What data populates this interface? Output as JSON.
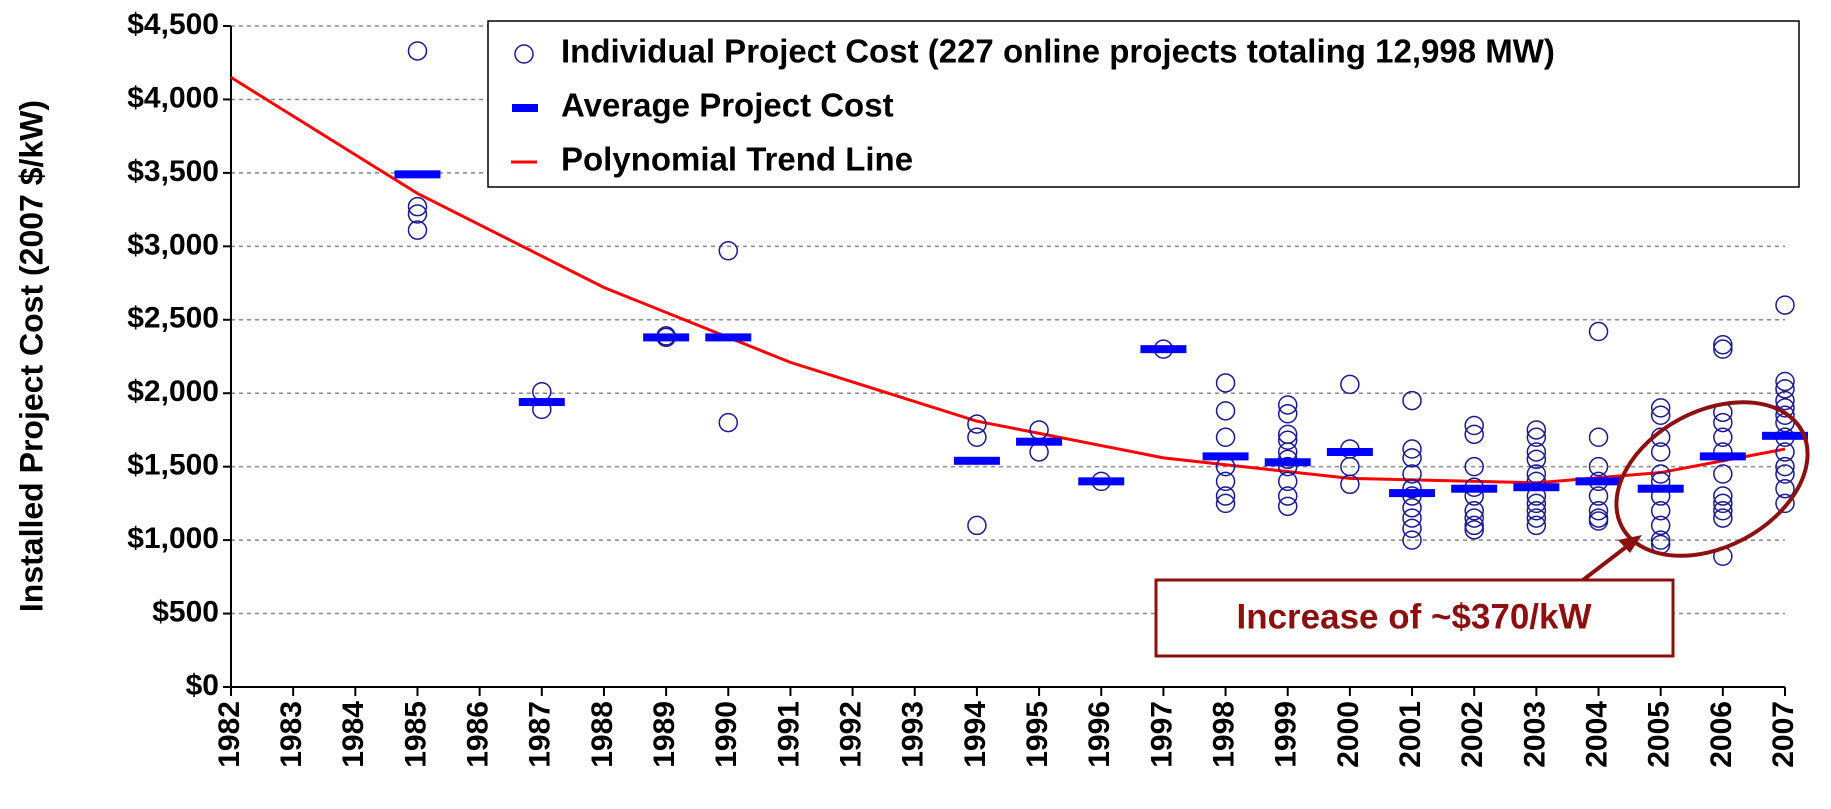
{
  "chart_data": {
    "type": "scatter",
    "y_label": "Installed Project Cost (2007 $/kW)",
    "xlim": [
      1982,
      2007
    ],
    "xticks": [
      1982,
      1983,
      1984,
      1985,
      1986,
      1987,
      1988,
      1989,
      1990,
      1991,
      1992,
      1993,
      1994,
      1995,
      1996,
      1997,
      1998,
      1999,
      2000,
      2001,
      2002,
      2003,
      2004,
      2005,
      2006,
      2007
    ],
    "ylim": [
      0,
      4500
    ],
    "yticks": [
      {
        "value": 0,
        "label": "$0"
      },
      {
        "value": 500,
        "label": "$500"
      },
      {
        "value": 1000,
        "label": "$1,000"
      },
      {
        "value": 1500,
        "label": "$1,500"
      },
      {
        "value": 2000,
        "label": "$2,000"
      },
      {
        "value": 2500,
        "label": "$2,500"
      },
      {
        "value": 3000,
        "label": "$3,000"
      },
      {
        "value": 3500,
        "label": "$3,500"
      },
      {
        "value": 4000,
        "label": "$4,000"
      },
      {
        "value": 4500,
        "label": "$4,500"
      }
    ],
    "grid": true,
    "legend": "top-right",
    "series": [
      {
        "name": "Individual Project Cost (227 online projects totaling 12,998 MW)",
        "color": "#1a1a8c",
        "marker": "circle",
        "x": [
          1985,
          1985,
          1985,
          1985,
          1987,
          1987,
          1989,
          1989,
          1990,
          1990,
          1994,
          1994,
          1994,
          1995,
          1995,
          1996,
          1997,
          1998,
          1998,
          1998,
          1998,
          1998,
          1998,
          1998,
          1999,
          1999,
          1999,
          1999,
          1999,
          1999,
          1999,
          1999,
          1999,
          1999,
          2000,
          2000,
          2000,
          2000,
          2001,
          2001,
          2001,
          2001,
          2001,
          2001,
          2001,
          2001,
          2001,
          2001,
          2002,
          2002,
          2002,
          2002,
          2002,
          2002,
          2002,
          2002,
          2002,
          2003,
          2003,
          2003,
          2003,
          2003,
          2003,
          2003,
          2003,
          2003,
          2003,
          2003,
          2004,
          2004,
          2004,
          2004,
          2004,
          2004,
          2004,
          2004,
          2005,
          2005,
          2005,
          2005,
          2005,
          2005,
          2005,
          2005,
          2005,
          2005,
          2005,
          2006,
          2006,
          2006,
          2006,
          2006,
          2006,
          2006,
          2006,
          2006,
          2006,
          2006,
          2006,
          2007,
          2007,
          2007,
          2007,
          2007,
          2007,
          2007,
          2007,
          2007,
          2007,
          2007,
          2007,
          2007
        ],
        "values": [
          4330,
          3270,
          3220,
          3110,
          2010,
          1890,
          2390,
          2380,
          2970,
          1800,
          1790,
          1700,
          1100,
          1750,
          1600,
          1400,
          2300,
          2070,
          1880,
          1700,
          1500,
          1400,
          1300,
          1250,
          1920,
          1860,
          1720,
          1680,
          1600,
          1550,
          1500,
          1400,
          1300,
          1230,
          2060,
          1620,
          1500,
          1380,
          1950,
          1620,
          1560,
          1450,
          1350,
          1300,
          1220,
          1150,
          1080,
          1000,
          1780,
          1720,
          1500,
          1360,
          1300,
          1200,
          1150,
          1100,
          1070,
          1750,
          1700,
          1600,
          1550,
          1450,
          1400,
          1300,
          1250,
          1200,
          1150,
          1100,
          2420,
          1700,
          1500,
          1400,
          1300,
          1200,
          1150,
          1130,
          1900,
          1850,
          1700,
          1600,
          1450,
          1400,
          1300,
          1200,
          1100,
          1000,
          970,
          2330,
          2300,
          1870,
          1800,
          1700,
          1600,
          1450,
          1300,
          1250,
          1200,
          1150,
          890,
          2600,
          2080,
          2030,
          1950,
          1900,
          1850,
          1800,
          1700,
          1600,
          1500,
          1450,
          1350,
          1250
        ]
      },
      {
        "name": "Average Project Cost",
        "color": "#0000ff",
        "marker": "dash",
        "x": [
          1985,
          1987,
          1989,
          1990,
          1994,
          1995,
          1996,
          1997,
          1998,
          1999,
          2000,
          2001,
          2002,
          2003,
          2004,
          2005,
          2006,
          2007
        ],
        "values": [
          3490,
          1940,
          2380,
          2380,
          1540,
          1670,
          1400,
          2300,
          1570,
          1530,
          1600,
          1320,
          1350,
          1360,
          1400,
          1350,
          1570,
          1710
        ]
      },
      {
        "name": "Polynomial Trend Line",
        "color": "#ff0000",
        "marker": "line",
        "x": [
          1982,
          1985,
          1988,
          1991,
          1994,
          1997,
          2000,
          2003,
          2005,
          2007
        ],
        "values": [
          4150,
          3360,
          2720,
          2210,
          1810,
          1560,
          1420,
          1390,
          1460,
          1620
        ]
      }
    ],
    "annotation": "Increase of ~$370/kW"
  }
}
